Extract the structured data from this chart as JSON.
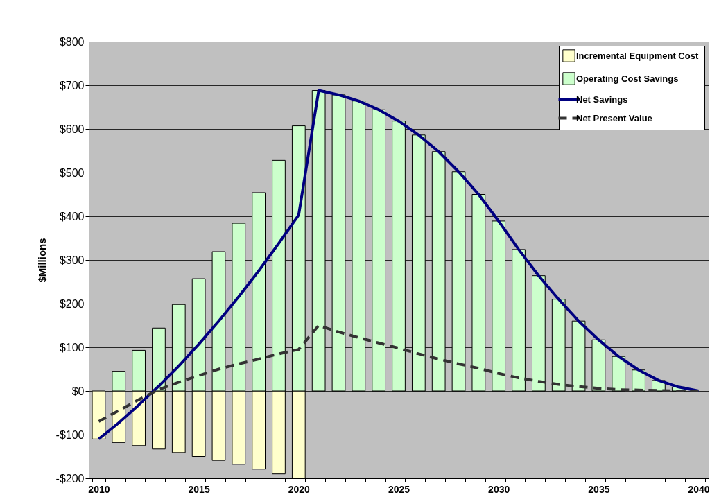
{
  "chart_data": {
    "type": "bar",
    "ylabel": "$Millions",
    "stacked": true,
    "legend": "top right",
    "grid": "y",
    "marker": "none",
    "categories": [
      "2010",
      null,
      null,
      null,
      null,
      "2015",
      null,
      null,
      null,
      null,
      "2020",
      null,
      null,
      null,
      null,
      "2025",
      null,
      null,
      null,
      null,
      "2030",
      null,
      null,
      null,
      null,
      "2035",
      null,
      null,
      null,
      null,
      "2040"
    ],
    "ylim": [
      -200,
      800
    ],
    "yticks": [
      {
        "value": -200,
        "label": "-$200"
      },
      {
        "value": -100,
        "label": "-$100"
      },
      {
        "value": 0,
        "label": "$0"
      },
      {
        "value": 100,
        "label": "$100"
      },
      {
        "value": 200,
        "label": "$200"
      },
      {
        "value": 300,
        "label": "$300"
      },
      {
        "value": 400,
        "label": "$400"
      },
      {
        "value": 500,
        "label": "$500"
      },
      {
        "value": 600,
        "label": "$600"
      },
      {
        "value": 700,
        "label": "$700"
      },
      {
        "value": 800,
        "label": "$800"
      }
    ],
    "series": [
      {
        "name": "Incremental Equipment Cost",
        "color": "#ffffcc",
        "values": [
          -110,
          -118,
          -125,
          -133,
          -141,
          -150,
          -159,
          -168,
          -179,
          -190,
          -200,
          null,
          null,
          null,
          null,
          null,
          null,
          null,
          null,
          null,
          null,
          null,
          null,
          null,
          null,
          null,
          null,
          null,
          null,
          null,
          null
        ]
      },
      {
        "name": "Operating Cost Savings",
        "color": "#ccffcc",
        "values": [
          null,
          45,
          93,
          144,
          198,
          257,
          319,
          384,
          454,
          528,
          607,
          688,
          678,
          664,
          644,
          618,
          586,
          548,
          502,
          450,
          389,
          324,
          264,
          210,
          160,
          117,
          79,
          48,
          24,
          9,
          null
        ]
      },
      {
        "name": "Net Savings",
        "type": "line",
        "color": "#000080",
        "line_style": "solid",
        "values": [
          -110,
          -73,
          -32,
          11,
          57,
          107,
          160,
          216,
          275,
          338,
          403,
          688,
          678,
          664,
          644,
          618,
          586,
          548,
          502,
          450,
          389,
          324,
          264,
          210,
          160,
          117,
          79,
          48,
          24,
          9,
          0
        ]
      },
      {
        "name": "Net Present Value",
        "type": "line",
        "color": "#333333",
        "line_style": "dashed",
        "values": [
          -70,
          -45,
          -20,
          3,
          20,
          35,
          50,
          62,
          73,
          85,
          95,
          150,
          135,
          122,
          110,
          98,
          85,
          73,
          62,
          52,
          40,
          30,
          22,
          15,
          10,
          6,
          3,
          2,
          1,
          0,
          0
        ]
      }
    ]
  }
}
